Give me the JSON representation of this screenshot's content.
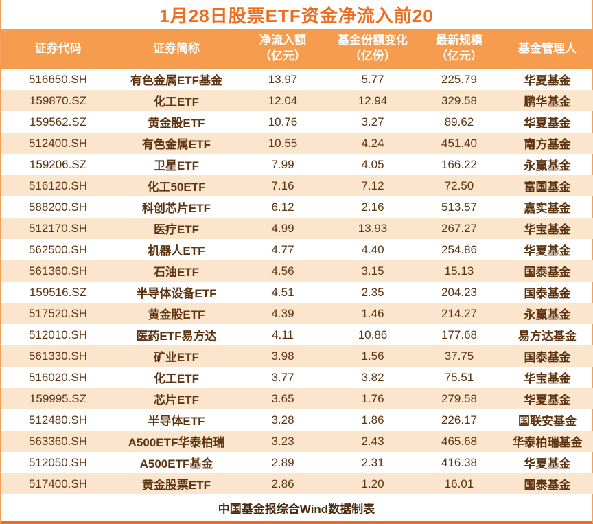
{
  "colors": {
    "title": "#ed6c1e",
    "header_bg": "#f59c4f",
    "header_text": "#ffffff",
    "row_alt_bg": "#fce5cd",
    "body_text": "#5e3310",
    "border": "#ed6c1e"
  },
  "chart_data": {
    "type": "table",
    "title": "1月28日股票ETF资金净流入前20",
    "source_note": "中国基金报综合Wind数据制表",
    "headers": [
      [
        "证券代码"
      ],
      [
        "证券简称"
      ],
      [
        "净流入额",
        "（亿元）"
      ],
      [
        "基金份额变化",
        "（亿份）"
      ],
      [
        "最新规模",
        "（亿元）"
      ],
      [
        "基金管理人"
      ]
    ],
    "rows": [
      [
        "516650.SH",
        "有色金属ETF基金",
        "13.97",
        "5.77",
        "225.79",
        "华夏基金"
      ],
      [
        "159870.SZ",
        "化工ETF",
        "12.04",
        "12.94",
        "329.58",
        "鹏华基金"
      ],
      [
        "159562.SZ",
        "黄金股ETF",
        "10.76",
        "3.27",
        "89.62",
        "华夏基金"
      ],
      [
        "512400.SH",
        "有色金属ETF",
        "10.55",
        "4.24",
        "451.40",
        "南方基金"
      ],
      [
        "159206.SZ",
        "卫星ETF",
        "7.99",
        "4.05",
        "166.22",
        "永赢基金"
      ],
      [
        "516120.SH",
        "化工50ETF",
        "7.16",
        "7.12",
        "72.50",
        "富国基金"
      ],
      [
        "588200.SH",
        "科创芯片ETF",
        "6.12",
        "2.16",
        "513.57",
        "嘉实基金"
      ],
      [
        "512170.SH",
        "医疗ETF",
        "4.99",
        "13.93",
        "267.27",
        "华宝基金"
      ],
      [
        "562500.SH",
        "机器人ETF",
        "4.77",
        "4.40",
        "254.86",
        "华夏基金"
      ],
      [
        "561360.SH",
        "石油ETF",
        "4.56",
        "3.15",
        "15.13",
        "国泰基金"
      ],
      [
        "159516.SZ",
        "半导体设备ETF",
        "4.51",
        "2.35",
        "204.23",
        "国泰基金"
      ],
      [
        "517520.SH",
        "黄金股ETF",
        "4.39",
        "1.46",
        "214.27",
        "永赢基金"
      ],
      [
        "512010.SH",
        "医药ETF易方达",
        "4.11",
        "10.86",
        "177.68",
        "易方达基金"
      ],
      [
        "561330.SH",
        "矿业ETF",
        "3.98",
        "1.56",
        "37.75",
        "国泰基金"
      ],
      [
        "516020.SH",
        "化工ETF",
        "3.77",
        "3.82",
        "75.51",
        "华宝基金"
      ],
      [
        "159995.SZ",
        "芯片ETF",
        "3.65",
        "1.76",
        "279.58",
        "华夏基金"
      ],
      [
        "512480.SH",
        "半导体ETF",
        "3.28",
        "1.86",
        "226.17",
        "国联安基金"
      ],
      [
        "563360.SH",
        "A500ETF华泰柏瑞",
        "3.23",
        "2.43",
        "465.68",
        "华泰柏瑞基金"
      ],
      [
        "512050.SH",
        "A500ETF基金",
        "2.89",
        "2.31",
        "416.38",
        "华夏基金"
      ],
      [
        "517400.SH",
        "黄金股票ETF",
        "2.86",
        "1.20",
        "16.01",
        "国泰基金"
      ]
    ]
  }
}
